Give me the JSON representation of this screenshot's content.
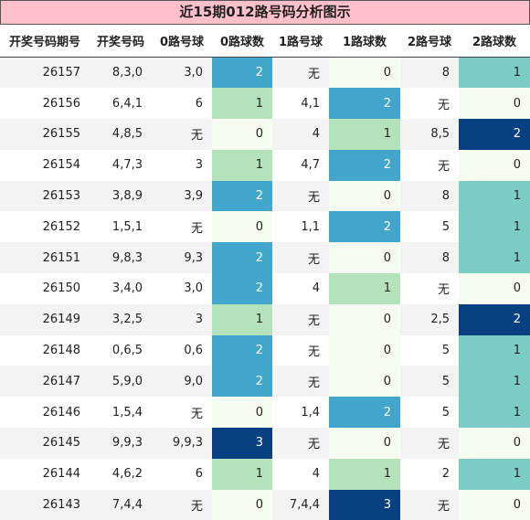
{
  "title": "近15期012路号码分析图示",
  "table": {
    "headers": [
      "开奖号码期号",
      "开奖号码",
      "0路号球",
      "0路球数",
      "1路号球",
      "1路球数",
      "2路号球",
      "2路球数"
    ],
    "heat_columns": [
      3,
      5,
      7
    ],
    "colormap": [
      "#f7fcf0",
      "#e0f3db",
      "#ccebc5",
      "#a8ddb5",
      "#7bccc4",
      "#4eb3d3",
      "#2b8cbe",
      "#0868ac",
      "#084081"
    ],
    "rows": [
      [
        26157,
        "8,3,0",
        "3,0",
        2,
        "无",
        0,
        "8",
        1
      ],
      [
        26156,
        "6,4,1",
        "6",
        1,
        "4,1",
        2,
        "无",
        0
      ],
      [
        26155,
        "4,8,5",
        "无",
        0,
        "4",
        1,
        "8,5",
        2
      ],
      [
        26154,
        "4,7,3",
        "3",
        1,
        "4,7",
        2,
        "无",
        0
      ],
      [
        26153,
        "3,8,9",
        "3,9",
        2,
        "无",
        0,
        "8",
        1
      ],
      [
        26152,
        "1,5,1",
        "无",
        0,
        "1,1",
        2,
        "5",
        1
      ],
      [
        26151,
        "9,8,3",
        "9,3",
        2,
        "无",
        0,
        "8",
        1
      ],
      [
        26150,
        "3,4,0",
        "3,0",
        2,
        "4",
        1,
        "无",
        0
      ],
      [
        26149,
        "3,2,5",
        "3",
        1,
        "无",
        0,
        "2,5",
        2
      ],
      [
        26148,
        "0,6,5",
        "0,6",
        2,
        "无",
        0,
        "5",
        1
      ],
      [
        26147,
        "5,9,0",
        "9,0",
        2,
        "无",
        0,
        "5",
        1
      ],
      [
        26146,
        "1,5,4",
        "无",
        0,
        "1,4",
        2,
        "5",
        1
      ],
      [
        26145,
        "9,9,3",
        "9,9,3",
        3,
        "无",
        0,
        "无",
        0
      ],
      [
        26144,
        "4,6,2",
        "6",
        1,
        "4",
        1,
        "2",
        1
      ],
      [
        26143,
        "7,4,4",
        "无",
        0,
        "7,4,4",
        3,
        "无",
        0
      ]
    ]
  }
}
